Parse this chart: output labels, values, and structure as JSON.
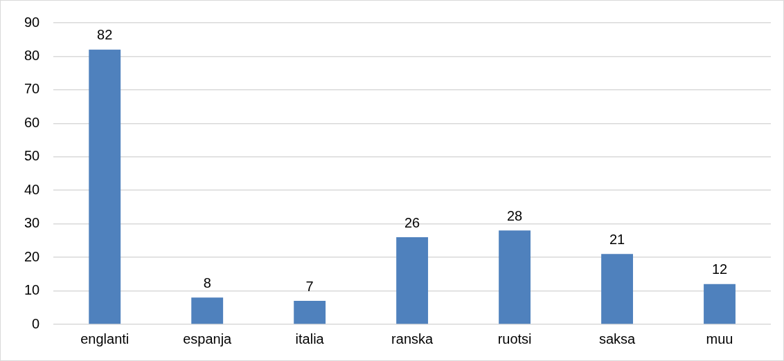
{
  "chart_data": {
    "type": "bar",
    "categories": [
      "englanti",
      "espanja",
      "italia",
      "ranska",
      "ruotsi",
      "saksa",
      "muu"
    ],
    "values": [
      82,
      8,
      7,
      26,
      28,
      21,
      12
    ],
    "color": "#4f81bd",
    "ylim": [
      0,
      90
    ],
    "yticks": [
      0,
      10,
      20,
      30,
      40,
      50,
      60,
      70,
      80,
      90
    ],
    "grid": "y",
    "data_labels": true
  }
}
